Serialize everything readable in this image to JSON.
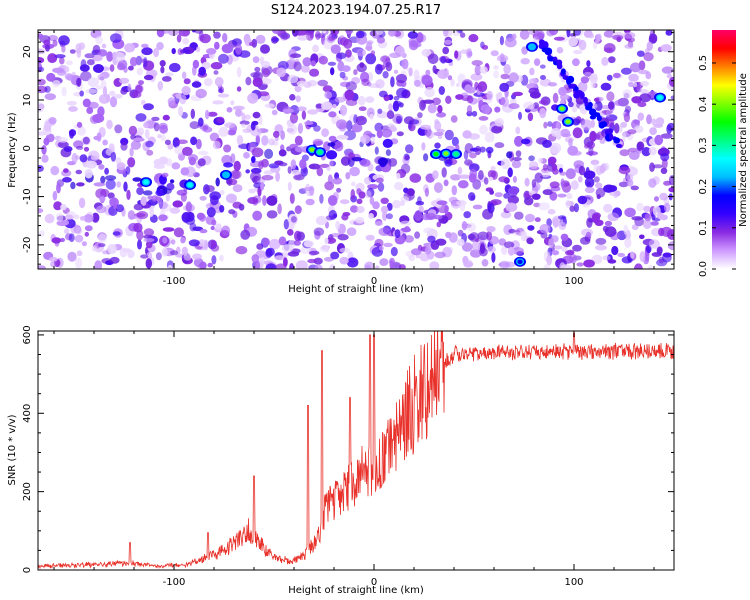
{
  "title": "S124.2023.194.07.25.R17",
  "chart_data": [
    {
      "type": "heatmap",
      "xlabel": "Height of straight line (km)",
      "ylabel": "Frequency (Hz)",
      "xlim": [
        -168,
        150
      ],
      "ylim": [
        -25,
        24.5
      ],
      "xticks": [
        -100,
        0,
        100
      ],
      "yticks": [
        -20,
        -10,
        0,
        10,
        20
      ],
      "colorbar": {
        "label": "Normalized spectral amplitude",
        "range": [
          0,
          0.58
        ],
        "ticks": [
          "0.0",
          "0.1",
          "0.2",
          "0.3",
          "0.4",
          "0.5"
        ],
        "colors": [
          "#ffffff",
          "#cf9bff",
          "#8a2be2",
          "#3300ff",
          "#0000ff",
          "#00bfff",
          "#00ffff",
          "#00ff80",
          "#00ff00",
          "#80ff00",
          "#ffff00",
          "#ff8000",
          "#ff0000",
          "#ff0066"
        ]
      },
      "ridge": [
        {
          "x": -160,
          "y": -9
        },
        {
          "x": -140,
          "y": -8
        },
        {
          "x": -115,
          "y": -7.5
        },
        {
          "x": -90,
          "y": -7.5
        },
        {
          "x": -75,
          "y": -6
        },
        {
          "x": -55,
          "y": -2
        },
        {
          "x": -35,
          "y": 0
        },
        {
          "x": -20,
          "y": -1
        },
        {
          "x": 0,
          "y": -1
        },
        {
          "x": 20,
          "y": -1.5
        },
        {
          "x": 40,
          "y": -1
        },
        {
          "x": 60,
          "y": -0.5
        },
        {
          "x": 80,
          "y": 0
        }
      ],
      "hotspots": [
        {
          "x": -114,
          "y": -7,
          "v": 0.25
        },
        {
          "x": -92,
          "y": -7.6,
          "v": 0.28
        },
        {
          "x": -74,
          "y": -5.5,
          "v": 0.22
        },
        {
          "x": -31,
          "y": -0.3,
          "v": 0.38
        },
        {
          "x": -27,
          "y": -0.8,
          "v": 0.33
        },
        {
          "x": 31,
          "y": -1.2,
          "v": 0.34
        },
        {
          "x": 36,
          "y": -1.1,
          "v": 0.42
        },
        {
          "x": 41,
          "y": -1.2,
          "v": 0.3
        },
        {
          "x": 94,
          "y": 8.2,
          "v": 0.4
        },
        {
          "x": 97,
          "y": 5.5,
          "v": 0.42
        },
        {
          "x": 143,
          "y": 10.5,
          "v": 0.26
        },
        {
          "x": 79,
          "y": 21,
          "v": 0.22
        },
        {
          "x": 73,
          "y": -23.5,
          "v": 0.2
        }
      ]
    },
    {
      "type": "line",
      "xlabel": "Height of straight line (km)",
      "ylabel": "SNR (10 * v/v)",
      "xlim": [
        -168,
        150
      ],
      "ylim": [
        0,
        610
      ],
      "xticks": [
        -100,
        0,
        100
      ],
      "yticks": [
        0,
        200,
        400,
        600
      ],
      "color": "#e8322b",
      "envelope": [
        {
          "x": -168,
          "y": 10
        },
        {
          "x": -140,
          "y": 14
        },
        {
          "x": -122,
          "y": 18
        },
        {
          "x": -110,
          "y": 10
        },
        {
          "x": -95,
          "y": 12
        },
        {
          "x": -85,
          "y": 30
        },
        {
          "x": -75,
          "y": 50
        },
        {
          "x": -67,
          "y": 80
        },
        {
          "x": -63,
          "y": 105
        },
        {
          "x": -58,
          "y": 75
        },
        {
          "x": -50,
          "y": 35
        },
        {
          "x": -42,
          "y": 20
        },
        {
          "x": -35,
          "y": 35
        },
        {
          "x": -28,
          "y": 80
        },
        {
          "x": -24,
          "y": 160
        },
        {
          "x": -15,
          "y": 200
        },
        {
          "x": -5,
          "y": 250
        },
        {
          "x": 5,
          "y": 280
        },
        {
          "x": 15,
          "y": 380
        },
        {
          "x": 25,
          "y": 470
        },
        {
          "x": 32,
          "y": 520
        },
        {
          "x": 40,
          "y": 550
        },
        {
          "x": 60,
          "y": 555
        },
        {
          "x": 150,
          "y": 560
        }
      ],
      "spikes": [
        {
          "x": -122,
          "y": 70
        },
        {
          "x": -83,
          "y": 95
        },
        {
          "x": -60,
          "y": 240
        },
        {
          "x": -33,
          "y": 420
        },
        {
          "x": -26,
          "y": 560
        },
        {
          "x": -12,
          "y": 440
        },
        {
          "x": -2,
          "y": 600
        },
        {
          "x": 0,
          "y": 600
        },
        {
          "x": 100,
          "y": 605
        }
      ]
    }
  ]
}
